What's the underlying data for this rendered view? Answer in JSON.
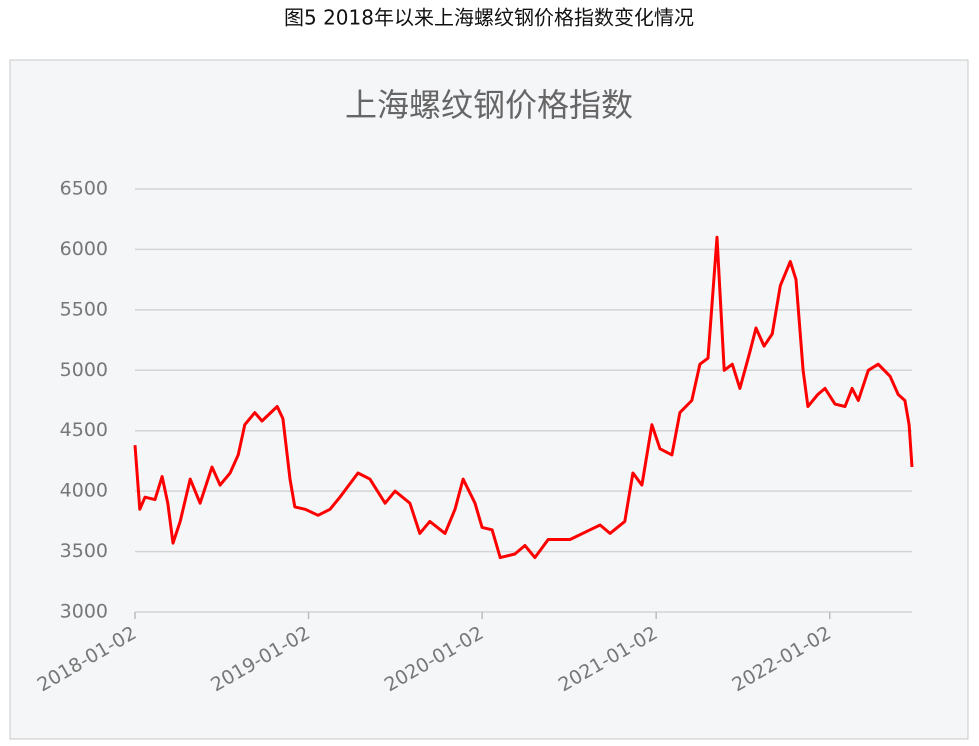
{
  "page_title": "图5 2018年以来上海螺纹钢价格指数变化情况",
  "chart_data": {
    "type": "line",
    "title": "上海螺纹钢价格指数",
    "x": [
      "2018-01-02",
      "2018-01-12",
      "2018-01-23",
      "2018-02-13",
      "2018-02-28",
      "2018-03-12",
      "2018-03-23",
      "2018-04-07",
      "2018-04-28",
      "2018-05-19",
      "2018-06-13",
      "2018-06-30",
      "2018-07-21",
      "2018-08-07",
      "2018-08-21",
      "2018-09-11",
      "2018-09-26",
      "2018-10-28",
      "2018-11-09",
      "2018-11-24",
      "2018-12-04",
      "2018-12-26",
      "2019-01-22",
      "2019-02-16",
      "2019-03-09",
      "2019-04-16",
      "2019-05-11",
      "2019-06-12",
      "2019-07-03",
      "2019-08-03",
      "2019-08-24",
      "2019-09-14",
      "2019-10-16",
      "2019-11-06",
      "2019-11-23",
      "2019-12-18",
      "2020-01-02",
      "2020-01-23",
      "2020-02-09",
      "2020-03-11",
      "2020-04-01",
      "2020-04-22",
      "2020-05-20",
      "2020-07-05",
      "2020-08-16",
      "2020-09-06",
      "2020-09-27",
      "2020-10-28",
      "2020-11-14",
      "2020-12-03",
      "2020-12-24",
      "2021-01-10",
      "2021-02-04",
      "2021-02-21",
      "2021-03-18",
      "2021-04-04",
      "2021-04-21",
      "2021-05-10",
      "2021-05-25",
      "2021-06-11",
      "2021-06-27",
      "2021-07-18",
      "2021-07-31",
      "2021-08-17",
      "2021-09-03",
      "2021-09-20",
      "2021-10-11",
      "2021-10-23",
      "2021-11-07",
      "2021-11-17",
      "2021-12-08",
      "2021-12-23",
      "2022-01-13",
      "2022-02-03",
      "2022-02-18",
      "2022-03-03",
      "2022-03-24",
      "2022-04-14",
      "2022-05-09",
      "2022-05-26",
      "2022-06-09",
      "2022-06-18",
      "2022-06-24"
    ],
    "series": [
      {
        "color": "#ff0000",
        "values": [
          4380,
          3850,
          3950,
          3930,
          4120,
          3900,
          3570,
          3750,
          4100,
          3900,
          4200,
          4050,
          4150,
          4300,
          4550,
          4650,
          4580,
          4700,
          4600,
          4100,
          3870,
          3850,
          3800,
          3850,
          3950,
          4150,
          4100,
          3900,
          4000,
          3900,
          3650,
          3750,
          3650,
          3850,
          4100,
          3900,
          3700,
          3680,
          3450,
          3480,
          3550,
          3450,
          3600,
          3600,
          3680,
          3720,
          3650,
          3750,
          4150,
          4050,
          4550,
          4350,
          4300,
          4650,
          4750,
          5050,
          5100,
          6100,
          5000,
          5050,
          4850,
          5150,
          5350,
          5200,
          5300,
          5700,
          5900,
          5750,
          5000,
          4700,
          4800,
          4850,
          4720,
          4700,
          4850,
          4750,
          5000,
          5050,
          4950,
          4800,
          4750,
          4550,
          4200
        ]
      }
    ],
    "xlim": [
      "2018-01-02",
      "2022-06-24"
    ],
    "xticks": [
      "2018-01-02",
      "2019-01-02",
      "2020-01-02",
      "2021-01-02",
      "2022-01-02"
    ],
    "ylim": [
      3000,
      6500
    ],
    "yticks": [
      3000,
      3500,
      4000,
      4500,
      5000,
      5500,
      6000,
      6500
    ],
    "grid": true
  }
}
